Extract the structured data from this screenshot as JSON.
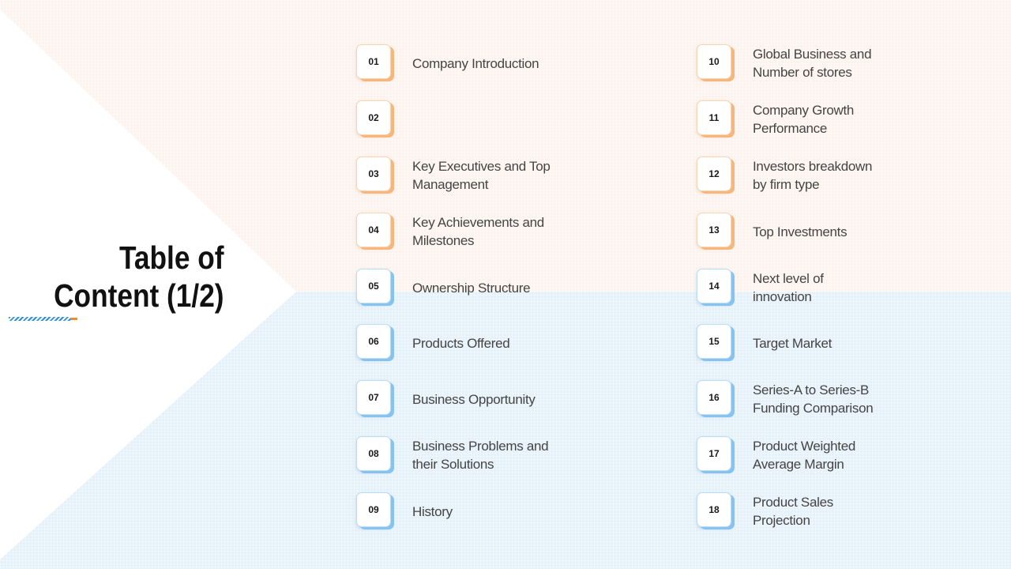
{
  "title": {
    "line1": "Table of",
    "line2": "Content (1/2)"
  },
  "items": [
    {
      "number": "01",
      "label": "Company Introduction",
      "color": "orange"
    },
    {
      "number": "02",
      "label": "",
      "color": "orange"
    },
    {
      "number": "03",
      "label": "Key Executives and Top Management",
      "color": "orange"
    },
    {
      "number": "04",
      "label": "Key Achievements and Milestones",
      "color": "orange"
    },
    {
      "number": "05",
      "label": "Ownership Structure",
      "color": "blue"
    },
    {
      "number": "06",
      "label": "Products Offered",
      "color": "blue"
    },
    {
      "number": "07",
      "label": "Business Opportunity",
      "color": "blue"
    },
    {
      "number": "08",
      "label": "Business Problems and their Solutions",
      "color": "blue"
    },
    {
      "number": "09",
      "label": "History",
      "color": "blue"
    },
    {
      "number": "10",
      "label": "Global Business and Number of stores",
      "color": "orange"
    },
    {
      "number": "11",
      "label": "Company Growth Performance",
      "color": "orange"
    },
    {
      "number": "12",
      "label": "Investors breakdown by firm type",
      "color": "orange"
    },
    {
      "number": "13",
      "label": "Top Investments",
      "color": "orange"
    },
    {
      "number": "14",
      "label": "Next level of innovation",
      "color": "blue"
    },
    {
      "number": "15",
      "label": "Target Market",
      "color": "blue"
    },
    {
      "number": "16",
      "label": "Series-A to Series-B Funding Comparison",
      "color": "blue"
    },
    {
      "number": "17",
      "label": "Product Weighted Average Margin",
      "color": "blue"
    },
    {
      "number": "18",
      "label": "Product Sales Projection",
      "color": "blue"
    }
  ],
  "colors": {
    "top_background": "#fdf3ec",
    "bottom_background": "#e3f1fb",
    "orange_accent": "#f7b77c",
    "blue_accent": "#86c3f0",
    "title_text": "#111111",
    "label_text": "#444444"
  }
}
